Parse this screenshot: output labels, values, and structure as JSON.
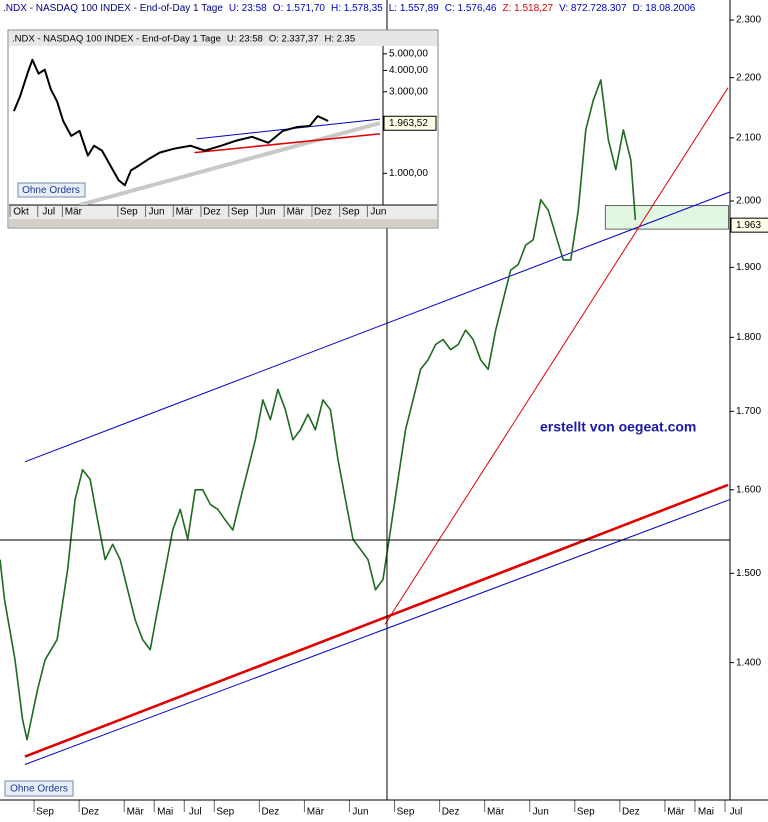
{
  "chart_data": [
    {
      "type": "line",
      "log": true,
      "header": [
        {
          "text": ".NDX - NASDAQ 100 INDEX - End-of-Day 1 Tage",
          "color": "#000080"
        },
        {
          "text": "U: 23:58",
          "color": "#0000c0"
        },
        {
          "text": "O: 1.571,70",
          "color": "#0000c0"
        },
        {
          "text": "H: 1.578,35",
          "color": "#0000c0"
        },
        {
          "text": "L: 1.557,89",
          "color": "#0000c0"
        },
        {
          "text": "C: 1.576,46",
          "color": "#0000c0"
        },
        {
          "text": "Z: 1.518,27",
          "color": "#e00000"
        },
        {
          "text": "V: 872.728.307",
          "color": "#0000c0"
        },
        {
          "text": "D: 18.08.2006",
          "color": "#0000c0"
        }
      ],
      "annotation": "erstellt von oegeat.com",
      "button": "Ohne Orders",
      "xlim": [
        -3,
        46.6
      ],
      "ylim": [
        1259,
        2336
      ],
      "xticks": [
        {
          "value": 0,
          "label": "Sep"
        },
        {
          "value": 3,
          "label": "Dez"
        },
        {
          "value": 6,
          "label": "Mär"
        },
        {
          "value": 8,
          "label": "Mai"
        },
        {
          "value": 10,
          "label": "Jul"
        },
        {
          "value": 12,
          "label": "Sep"
        },
        {
          "value": 15,
          "label": "Dez"
        },
        {
          "value": 18,
          "label": "Mär"
        },
        {
          "value": 21,
          "label": "Jun"
        },
        {
          "value": 24,
          "label": "Sep"
        },
        {
          "value": 27,
          "label": "Dez"
        },
        {
          "value": 30,
          "label": "Mär"
        },
        {
          "value": 33,
          "label": "Jun"
        },
        {
          "value": 36,
          "label": "Sep"
        },
        {
          "value": 39,
          "label": "Dez"
        },
        {
          "value": 42,
          "label": "Mär"
        },
        {
          "value": 44,
          "label": "Mai"
        },
        {
          "value": 46,
          "label": "Jul"
        }
      ],
      "yticks": [
        {
          "value": 1400,
          "label": "1.400"
        },
        {
          "value": 1500,
          "label": "1.500"
        },
        {
          "value": 1600,
          "label": "1.600"
        },
        {
          "value": 1700,
          "label": "1.700"
        },
        {
          "value": 1800,
          "label": "1.800"
        },
        {
          "value": 1900,
          "label": "1.900"
        },
        {
          "value": 2000,
          "label": "2.000"
        },
        {
          "value": 2100,
          "label": "2.100"
        },
        {
          "value": 2200,
          "label": "2.200"
        },
        {
          "value": 2300,
          "label": "2.300"
        }
      ],
      "last_price": {
        "value": 1963,
        "label": "1.963"
      },
      "zone": {
        "x": [
          37.3,
          45.5
        ],
        "y": [
          1957,
          1993
        ],
        "color": "#e2f7e2"
      },
      "x": [
        -3,
        -2.7,
        -2,
        -1.5,
        -1.2,
        -0.5,
        0,
        0.8,
        1.5,
        2,
        2.5,
        3,
        3.5,
        4,
        4.5,
        5,
        5.5,
        6,
        6.5,
        7,
        7.5,
        8,
        8.5,
        9,
        9.5,
        10,
        10.5,
        11,
        11.5,
        12,
        12.5,
        13,
        13.5,
        14,
        14.5,
        15,
        15.5,
        16,
        16.5,
        17,
        17.5,
        18,
        18.5,
        19,
        19.5,
        20,
        20.5,
        21,
        21.5,
        22,
        22.5,
        23,
        23.5,
        24,
        24.5,
        25,
        25.5,
        26,
        26.5,
        27,
        27.5,
        28,
        28.5,
        29,
        29.5,
        30,
        30.5,
        31,
        31.5,
        32,
        32.5,
        33,
        33.5,
        34,
        34.5,
        35,
        35.5,
        36,
        36.5,
        37,
        37.5,
        38,
        38.5,
        39,
        39.3
      ],
      "series": [
        {
          "color": "#1e6a1e",
          "values": [
            1516,
            1470,
            1403,
            1340,
            1319,
            1371,
            1403,
            1425,
            1504,
            1588,
            1625,
            1613,
            1563,
            1516,
            1534,
            1516,
            1481,
            1447,
            1425,
            1414,
            1459,
            1504,
            1551,
            1576,
            1540,
            1600,
            1600,
            1582,
            1576,
            1563,
            1551,
            1588,
            1625,
            1663,
            1715,
            1689,
            1729,
            1702,
            1663,
            1676,
            1696,
            1676,
            1715,
            1702,
            1638,
            1588,
            1540,
            1528,
            1516,
            1481,
            1493,
            1551,
            1613,
            1676,
            1715,
            1756,
            1769,
            1790,
            1797,
            1783,
            1790,
            1810,
            1797,
            1769,
            1756,
            1810,
            1853,
            1896,
            1904,
            1933,
            1941,
            2002,
            1986,
            1948,
            1911,
            1911,
            1986,
            2113,
            2162,
            2196,
            2097,
            2049,
            2113,
            2064,
            1971
          ]
        }
      ],
      "trendlines": [
        {
          "color": "#e00000",
          "x": [
            -1.34,
            45.47
          ],
          "y": [
            1302,
            1606
          ]
        },
        {
          "color": "#0000c8",
          "x": [
            -1.34,
            46.27
          ],
          "y": [
            1635,
            2020
          ]
        },
        {
          "color": "#0000c8",
          "x": [
            -1.34,
            46.6
          ],
          "y": [
            1294,
            1595
          ]
        },
        {
          "color": "#e00000",
          "x": [
            22.63,
            45.47
          ],
          "y": [
            1442,
            2183
          ]
        }
      ]
    },
    {
      "type": "line",
      "log": true,
      "header": [
        {
          "text": ".NDX - NASDAQ 100 INDEX - End-of-Day 1 Tage",
          "color": "#000000"
        },
        {
          "text": "U: 23:58",
          "color": "#000000"
        },
        {
          "text": "O: 2.337,37",
          "color": "#000000"
        },
        {
          "text": "H: 2.35",
          "color": "#000000"
        }
      ],
      "button": "Ohne Orders",
      "xlim": [
        -2.92,
        117.5
      ],
      "ylim": [
        653,
        5558
      ],
      "xticks": [
        {
          "value": 0,
          "label": "Okt"
        },
        {
          "value": 9,
          "label": "Jul"
        },
        {
          "value": 17,
          "label": "Mär"
        },
        {
          "value": 35,
          "label": "Sep"
        },
        {
          "value": 44,
          "label": "Jun"
        },
        {
          "value": 53,
          "label": "Mär"
        },
        {
          "value": 62,
          "label": "Dez"
        },
        {
          "value": 71,
          "label": "Sep"
        },
        {
          "value": 80,
          "label": "Jun"
        },
        {
          "value": 89,
          "label": "Mär"
        },
        {
          "value": 98,
          "label": "Dez"
        },
        {
          "value": 107,
          "label": "Sep"
        },
        {
          "value": 116,
          "label": "Jun"
        }
      ],
      "yticks": [
        {
          "value": 1000,
          "label": "1.000,00"
        },
        {
          "value": 3000,
          "label": "3.000,00"
        },
        {
          "value": 4000,
          "label": "4.000,00"
        },
        {
          "value": 5000,
          "label": "5.000,00"
        }
      ],
      "last_price": {
        "value": 1963.52,
        "label": "1.963,52"
      },
      "x": [
        -2.3,
        -0.3,
        2.3,
        3.7,
        5.7,
        7.7,
        9.7,
        11.7,
        13.7,
        16.3,
        19,
        21.7,
        23.7,
        26.3,
        29,
        31.7,
        33.7,
        35.7,
        38.3,
        41.7,
        45,
        49.7,
        55,
        59.7,
        65,
        69.7,
        75,
        80.3,
        85,
        89.7,
        93.7,
        96.3,
        99.7
      ],
      "series": [
        {
          "color": "#000000",
          "values": [
            2311,
            2821,
            3935,
            4614,
            3830,
            4040,
            3097,
            2640,
            2024,
            1657,
            1772,
            1270,
            1451,
            1358,
            1112,
            911,
            852,
            1041,
            1112,
            1220,
            1322,
            1394,
            1451,
            1358,
            1451,
            1551,
            1636,
            1510,
            1772,
            1868,
            1893,
            2162,
            2024
          ]
        }
      ],
      "trendlines": [
        {
          "color": "#c8c8c8",
          "x": [
            19,
            116.5
          ],
          "y": [
            653,
            1970
          ]
        },
        {
          "color": "#e00000",
          "x": [
            56.3,
            116.5
          ],
          "y": [
            1322,
            1702
          ]
        },
        {
          "color": "#0000c8",
          "x": [
            57,
            116.5
          ],
          "y": [
            1592,
            2077
          ]
        }
      ]
    }
  ]
}
